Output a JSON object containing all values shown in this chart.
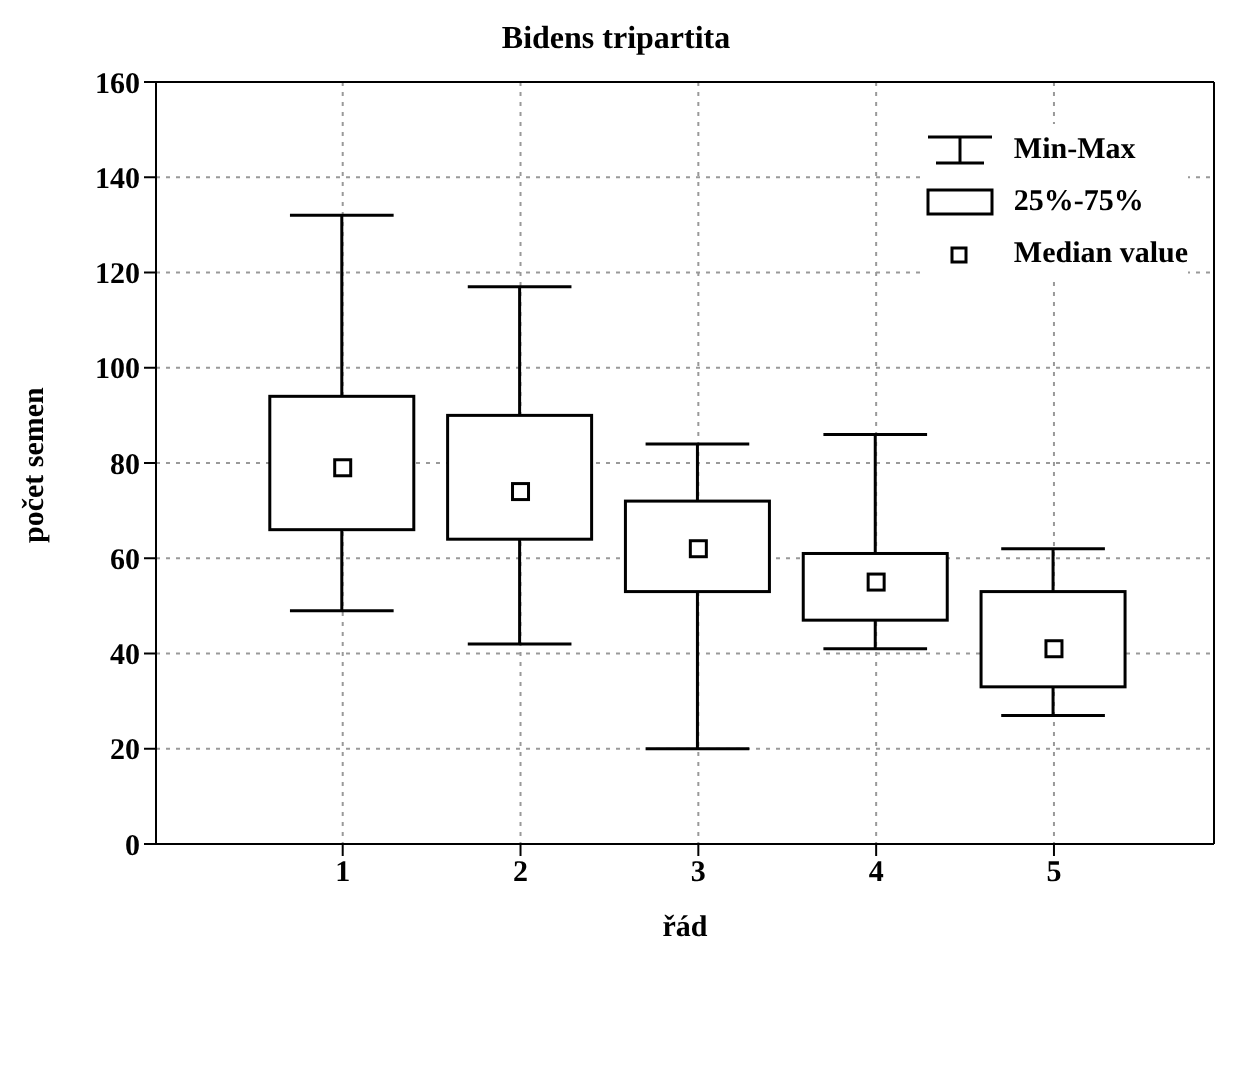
{
  "chart_data": {
    "type": "box",
    "title": "Bidens tripartita",
    "xlabel": "řád",
    "ylabel": "počet semen",
    "categories": [
      "1",
      "2",
      "3",
      "4",
      "5"
    ],
    "boxes": [
      {
        "low": 49,
        "q1": 66,
        "median": 79,
        "q3": 94,
        "high": 132
      },
      {
        "low": 42,
        "q1": 64,
        "median": 74,
        "q3": 90,
        "high": 117
      },
      {
        "low": 20,
        "q1": 53,
        "median": 62,
        "q3": 72,
        "high": 84
      },
      {
        "low": 41,
        "q1": 47,
        "median": 55,
        "q3": 61,
        "high": 86
      },
      {
        "low": 27,
        "q1": 33,
        "median": 41,
        "q3": 53,
        "high": 62
      }
    ],
    "color": "#000000",
    "ylim": [
      0,
      160
    ],
    "yticks": [
      0,
      20,
      40,
      60,
      80,
      100,
      120,
      140,
      160
    ],
    "grid": true,
    "annotations": [
      "Min-Max",
      "25%-75%",
      "Median value"
    ]
  }
}
